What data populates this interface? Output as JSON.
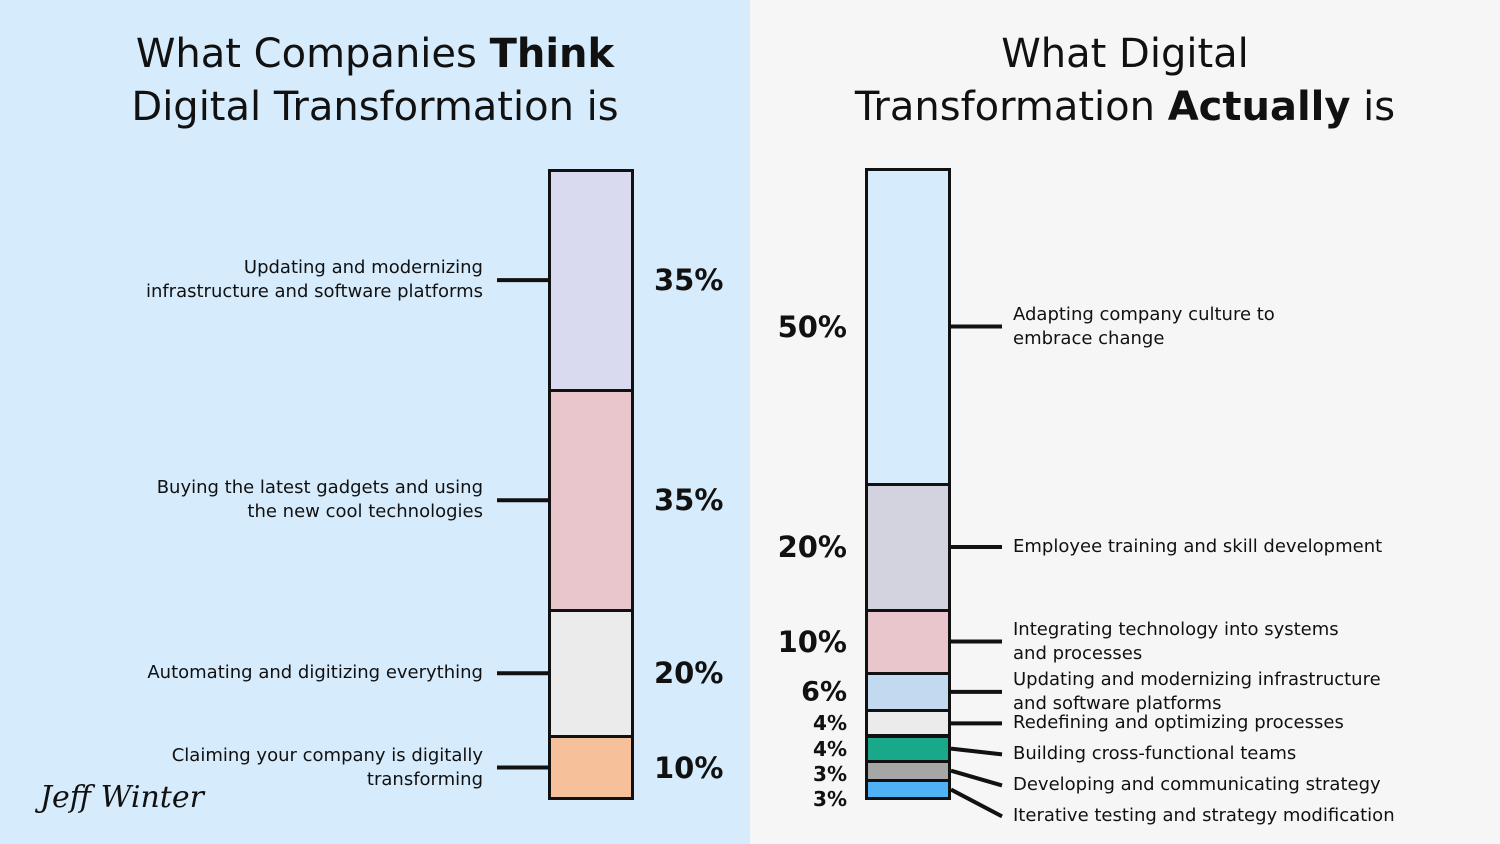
{
  "chart_data": [
    {
      "type": "stacked_column",
      "title": "What Companies Think\nDigital Transformation is",
      "title_emphasis": "Think",
      "label_side": "left",
      "background": "#d6ebfb",
      "ylim": [
        0,
        100
      ],
      "categories": [
        "Updating and modernizing\ninfrastructure and software platforms",
        "Buying the latest gadgets and using\nthe new cool technologies",
        "Automating and digitizing everything",
        "Claiming your company is digitally\ntransforming"
      ],
      "values": [
        35,
        35,
        20,
        10
      ],
      "value_labels": [
        "35%",
        "35%",
        "20%",
        "10%"
      ],
      "colors": [
        "#d9d9ef",
        "#e8c6cb",
        "#ebebeb",
        "#f5c09a"
      ]
    },
    {
      "type": "stacked_column",
      "title": "What Digital\nTransformation Actually is",
      "title_emphasis": "Actually",
      "label_side": "right",
      "background": "#f6f6f6",
      "ylim": [
        0,
        100
      ],
      "categories": [
        "Adapting company culture to\nembrace change",
        "Employee training and skill development",
        "Integrating technology into systems\nand processes",
        "Updating and modernizing infrastructure\nand software platforms",
        "Redefining and optimizing processes",
        "Building cross-functional teams",
        "Developing and communicating strategy",
        "Iterative testing and strategy modification"
      ],
      "values": [
        50,
        20,
        10,
        6,
        4,
        4,
        3,
        3
      ],
      "value_labels": [
        "50%",
        "20%",
        "10%",
        "6%",
        "4%",
        "4%",
        "3%",
        "3%"
      ],
      "colors": [
        "#d6ebfb",
        "#d3d3e0",
        "#e8c6cb",
        "#c3d9ef",
        "#ebebeb",
        "#1aa88a",
        "#a6a6a6",
        "#4fb2f5"
      ]
    }
  ],
  "signature": "Jeff Winter"
}
